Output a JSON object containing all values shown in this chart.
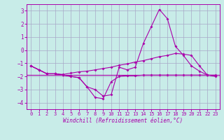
{
  "background_color": "#c8ece8",
  "grid_color": "#a8a8c8",
  "line_color": "#aa00aa",
  "x": [
    0,
    1,
    2,
    3,
    4,
    5,
    6,
    7,
    8,
    9,
    10,
    11,
    12,
    13,
    14,
    15,
    16,
    17,
    18,
    19,
    20,
    21,
    22,
    23
  ],
  "line1": [
    -1.2,
    -1.5,
    -1.8,
    -1.8,
    -1.9,
    -2.0,
    -2.1,
    -2.8,
    -3.0,
    -3.5,
    -3.4,
    -1.3,
    -1.5,
    -1.3,
    0.5,
    1.8,
    3.1,
    2.4,
    0.3,
    -0.4,
    -1.2,
    -1.6,
    -1.9,
    -2.0
  ],
  "line2": [
    -1.2,
    -1.5,
    -1.8,
    -1.8,
    -1.9,
    -2.0,
    -2.1,
    -2.8,
    -3.6,
    -3.7,
    -2.4,
    -2.0,
    -1.95,
    -1.95,
    -1.9,
    -1.9,
    -1.9,
    -1.9,
    -1.9,
    -1.9,
    -1.9,
    -1.9,
    -1.9,
    -1.9
  ],
  "line3": [
    -1.2,
    -1.5,
    -1.8,
    -1.8,
    -1.85,
    -1.75,
    -1.65,
    -1.6,
    -1.5,
    -1.4,
    -1.3,
    -1.15,
    -1.05,
    -0.9,
    -0.8,
    -0.65,
    -0.5,
    -0.4,
    -0.25,
    -0.3,
    -0.4,
    -1.2,
    -1.9,
    -1.95
  ],
  "line_flat": -1.9,
  "xlabel": "Windchill (Refroidissement éolien,°C)",
  "ylim": [
    -4.5,
    3.5
  ],
  "yticks": [
    -4,
    -3,
    -2,
    -1,
    0,
    1,
    2,
    3
  ],
  "xlim": [
    -0.5,
    23.5
  ],
  "xticks": [
    0,
    1,
    2,
    3,
    4,
    5,
    6,
    7,
    8,
    9,
    10,
    11,
    12,
    13,
    14,
    15,
    16,
    17,
    18,
    19,
    20,
    21,
    22,
    23
  ],
  "tick_fontsize": 5.0,
  "xlabel_fontsize": 5.5,
  "marker": "D",
  "markersize": 2.0,
  "linewidth": 0.8
}
